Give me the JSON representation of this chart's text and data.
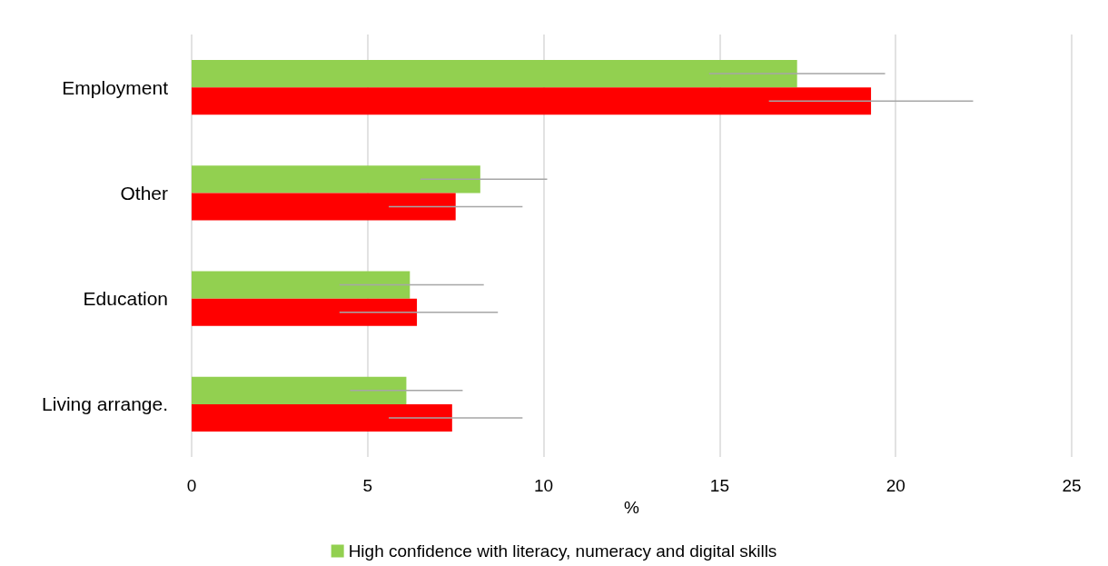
{
  "chart_data": {
    "type": "bar",
    "orientation": "horizontal",
    "categories": [
      "Employment",
      "Other",
      "Education",
      "Living arrange."
    ],
    "series": [
      {
        "name": "High confidence with literacy, numeracy and digital skills",
        "color": "#92d050",
        "values": [
          17.2,
          8.2,
          6.2,
          6.1
        ],
        "errors": [
          [
            14.7,
            19.7
          ],
          [
            6.5,
            10.1
          ],
          [
            4.2,
            8.3
          ],
          [
            4.5,
            7.7
          ]
        ]
      },
      {
        "color": "#ff0000",
        "values": [
          19.3,
          7.5,
          6.4,
          7.4
        ],
        "errors": [
          [
            16.4,
            22.2
          ],
          [
            5.6,
            9.4
          ],
          [
            4.2,
            8.7
          ],
          [
            5.6,
            9.4
          ]
        ]
      }
    ],
    "xlabel": "%",
    "xlim": [
      0,
      25
    ],
    "xticks": [
      0,
      5,
      10,
      15,
      20,
      25
    ],
    "grid": "x",
    "legend": "bottom"
  }
}
